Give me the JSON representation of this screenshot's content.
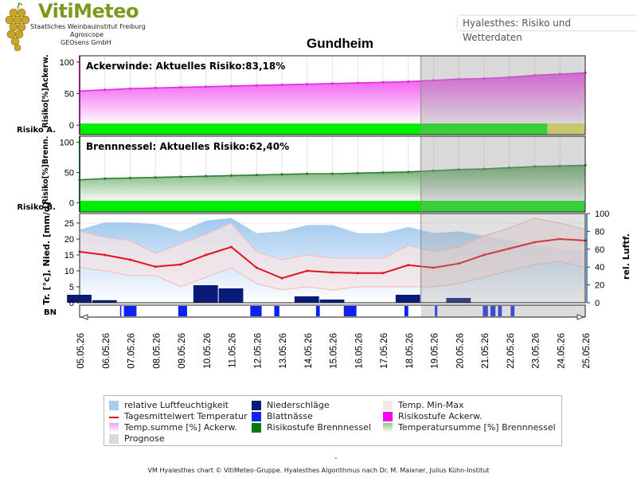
{
  "logo": {
    "title": "VitiMeteo",
    "lines": [
      "Staatliches Weinbauinstitut Freiburg",
      "Agroscope",
      "GEOsens GmbH"
    ]
  },
  "app_title": "Hyalesthes: Risiko und Wetterdaten",
  "colors": {
    "forecast_bg": "#d9d9d9",
    "risk_green": "#00ee00",
    "risk_yellow": "#e2e25a",
    "ackerwinde": "#ff55ff",
    "brennnessel": "#3c8c3c",
    "humidity": "#a6cdef",
    "temperature_line": "#e0141a",
    "temperature_range": "#f4b8b8",
    "precipitation": "#0a1a78",
    "leaf_wetness": "#0f22ee"
  },
  "chart_data": [
    {
      "type": "area",
      "title": "Gundheim",
      "panel_label": "Ackerwinde: Aktuelles Risiko:83,18%",
      "ylabel": "Risiko[%]Ackerw.",
      "ylim": [
        -15,
        110
      ],
      "yticks": [
        0,
        50,
        100
      ],
      "x": [
        "05.05.26",
        "06.05.26",
        "07.05.26",
        "08.05.26",
        "09.05.26",
        "10.05.26",
        "11.05.26",
        "12.05.26",
        "13.05.26",
        "14.05.26",
        "15.05.26",
        "16.05.26",
        "17.05.26",
        "18.05.26",
        "19.05.26",
        "20.05.26",
        "21.05.26",
        "22.05.26",
        "23.05.26",
        "24.05.26",
        "25.05.26"
      ],
      "series": [
        {
          "values": [
            54,
            56,
            58,
            59,
            60,
            61,
            62,
            63,
            64,
            65,
            66,
            67,
            68,
            69,
            71,
            73,
            74,
            76,
            79,
            81,
            83
          ]
        }
      ],
      "risk_strip": {
        "label": "Risiko A.",
        "levels": [
          "niedrig",
          "niedrig",
          "niedrig",
          "niedrig",
          "niedrig",
          "niedrig",
          "niedrig",
          "niedrig",
          "niedrig",
          "niedrig",
          "niedrig",
          "niedrig",
          "niedrig",
          "niedrig",
          "niedrig",
          "niedrig",
          "niedrig",
          "niedrig",
          "niedrig",
          "mittel",
          "mittel"
        ]
      },
      "forecast_from": "18.05.26"
    },
    {
      "type": "area",
      "panel_label": "Brennnessel: Aktuelles Risiko:62,40%",
      "ylabel": "Risiko[%]Brenn.",
      "ylim": [
        -15,
        110
      ],
      "yticks": [
        0,
        50,
        100
      ],
      "x": [
        "05.05.26",
        "06.05.26",
        "07.05.26",
        "08.05.26",
        "09.05.26",
        "10.05.26",
        "11.05.26",
        "12.05.26",
        "13.05.26",
        "14.05.26",
        "15.05.26",
        "16.05.26",
        "17.05.26",
        "18.05.26",
        "19.05.26",
        "20.05.26",
        "21.05.26",
        "22.05.26",
        "23.05.26",
        "24.05.26",
        "25.05.26"
      ],
      "series": [
        {
          "values": [
            38,
            40,
            41,
            42,
            43,
            44,
            45,
            46,
            47,
            48,
            48,
            49,
            50,
            51,
            53,
            55,
            56,
            58,
            60,
            61,
            62
          ]
        }
      ],
      "risk_strip": {
        "label": "Risiko B.",
        "levels": [
          "niedrig",
          "niedrig",
          "niedrig",
          "niedrig",
          "niedrig",
          "niedrig",
          "niedrig",
          "niedrig",
          "niedrig",
          "niedrig",
          "niedrig",
          "niedrig",
          "niedrig",
          "niedrig",
          "niedrig",
          "niedrig",
          "niedrig",
          "niedrig",
          "niedrig",
          "niedrig",
          "niedrig"
        ]
      },
      "forecast_from": "18.05.26"
    },
    {
      "type": "line",
      "ylabel_left": "Tr. [°c], Nied. [mm/d]",
      "ylabel_right": "rel. Luftf.",
      "ylim_left": [
        0,
        28
      ],
      "yticks_left": [
        0,
        5,
        10,
        15,
        20,
        25
      ],
      "ylim_right": [
        0,
        100
      ],
      "yticks_right": [
        0,
        20,
        40,
        60,
        80,
        100
      ],
      "x": [
        "05.05.26",
        "06.05.26",
        "07.05.26",
        "08.05.26",
        "09.05.26",
        "10.05.26",
        "11.05.26",
        "12.05.26",
        "13.05.26",
        "14.05.26",
        "15.05.26",
        "16.05.26",
        "17.05.26",
        "18.05.26",
        "19.05.26",
        "20.05.26",
        "21.05.26",
        "22.05.26",
        "23.05.26",
        "24.05.26",
        "25.05.26"
      ],
      "series": [
        {
          "name": "relative Luftfeuchtigkeit",
          "axis": "right",
          "values": [
            82,
            90,
            90,
            88,
            80,
            92,
            95,
            78,
            80,
            87,
            87,
            78,
            78,
            85,
            78,
            80,
            75,
            70,
            65,
            60,
            58
          ]
        },
        {
          "name": "Tagesmittelwert Temperatur",
          "axis": "left",
          "values": [
            16,
            15,
            13.5,
            11.3,
            12,
            15,
            17.5,
            11,
            7.7,
            10,
            9.5,
            9.3,
            9.3,
            11.8,
            11,
            12.3,
            15,
            17,
            19,
            20,
            19.5
          ]
        },
        {
          "name": "Temp. Min-Max max",
          "axis": "left",
          "values": [
            22.5,
            20.5,
            19.5,
            15.5,
            18.5,
            21.5,
            25,
            16,
            13.5,
            15,
            14,
            14,
            14,
            18,
            16,
            17.5,
            21,
            23.5,
            26.5,
            25,
            23
          ]
        },
        {
          "name": "Temp. Min-Max min",
          "axis": "left",
          "values": [
            11,
            10,
            8.5,
            8.5,
            5,
            8,
            11,
            6,
            4,
            5,
            4,
            5,
            5,
            5,
            5,
            6,
            8,
            10,
            12,
            13,
            11
          ]
        },
        {
          "name": "Niederschläge",
          "axis": "left",
          "type": "bar",
          "values": [
            2.5,
            0.8,
            0,
            0,
            0,
            5.5,
            4.5,
            0,
            0,
            2,
            1,
            0,
            0,
            2.5,
            0,
            1.5,
            0,
            0,
            0,
            0,
            0
          ]
        }
      ],
      "forecast_from": "18.05.26"
    },
    {
      "type": "bar",
      "row_label": "BN",
      "name": "Blattnässe",
      "x": [
        "05.05.26",
        "06.05.26",
        "07.05.26",
        "08.05.26",
        "09.05.26",
        "10.05.26",
        "11.05.26",
        "12.05.26",
        "13.05.26",
        "14.05.26",
        "15.05.26",
        "16.05.26",
        "17.05.26",
        "18.05.26",
        "19.05.26",
        "20.05.26",
        "21.05.26",
        "22.05.26",
        "23.05.26",
        "24.05.26",
        "25.05.26"
      ],
      "wet_intervals": [
        [
          1.6,
          1.65
        ],
        [
          1.75,
          2.25
        ],
        [
          3.9,
          4.25
        ],
        [
          6.75,
          7.2
        ],
        [
          7.7,
          7.9
        ],
        [
          9.35,
          9.5
        ],
        [
          10.45,
          10.95
        ],
        [
          12.85,
          13.0
        ],
        [
          14.05,
          14.15
        ],
        [
          15.95,
          16.15
        ],
        [
          16.25,
          16.45
        ],
        [
          16.55,
          16.7
        ],
        [
          17.05,
          17.2
        ]
      ],
      "forecast_from": "18.05.26"
    }
  ],
  "legend": [
    {
      "label": "relative Luftfeuchtigkeit",
      "color": "#a6cdef"
    },
    {
      "label": "Niederschläge",
      "color": "#0a1a78"
    },
    {
      "label": "Temp. Min-Max",
      "color": "#f6e9ea"
    },
    {
      "label": "Tagesmittelwert Temperatur",
      "color": "#e0141a",
      "style": "line"
    },
    {
      "label": "Blattnässe",
      "color": "#0f22ee"
    },
    {
      "label": "Risikostufe Ackerw.",
      "color": "#ff00ee"
    },
    {
      "label": "Temp.summe [%] Ackerw.",
      "color": "#f2a0f2",
      "style": "gradient"
    },
    {
      "label": "Risikostufe Brennnessel",
      "color": "#0a7a0a"
    },
    {
      "label": "Temperatursumme [%] Brennnessel",
      "color": "#8cc88c",
      "style": "gradient"
    },
    {
      "label": "Prognose",
      "color": "#d9d9d9"
    }
  ],
  "dash": "-",
  "footer": "VM Hyalesthes chart © VitiMeteo-Gruppe. Hyalesthes Algorithmus nach Dr. M. Maixner, Julius Kühn-Institut"
}
